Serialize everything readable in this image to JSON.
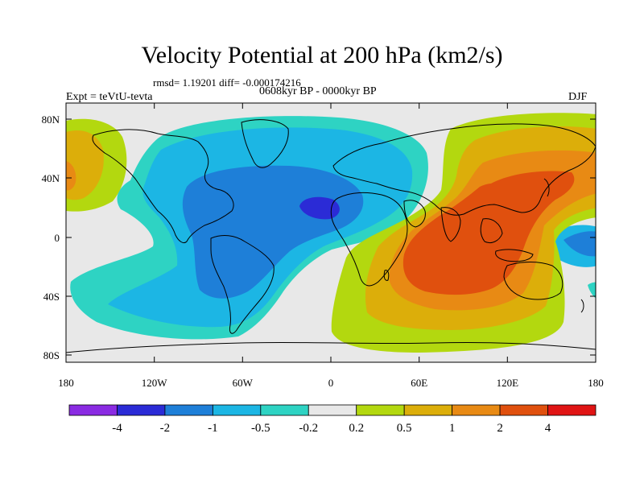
{
  "title": "Velocity Potential at 200 hPa (km2/s)",
  "stats": "rmsd= 1.19201 diff= -0.000174216",
  "period": "0608kyr BP - 0000kyr BP",
  "experiment": "Expt = teVtU-tevta",
  "season": "DJF",
  "lon_labels": [
    "180",
    "120W",
    "60W",
    "0",
    "60E",
    "120E",
    "180"
  ],
  "lat_labels": [
    "80N",
    "40N",
    "0",
    "40S",
    "80S"
  ],
  "colorbar": {
    "labels": [
      "-4",
      "-2",
      "-1",
      "-0.5",
      "-0.2",
      "0.2",
      "0.5",
      "1",
      "2",
      "4"
    ],
    "colors": [
      "#8a2be2",
      "#2b2bd6",
      "#1e7fd8",
      "#1cb6e4",
      "#2ed3c3",
      "#e8e8e8",
      "#b3d80f",
      "#dcae0a",
      "#e88a14",
      "#e0500e",
      "#e01414"
    ]
  },
  "fill_colors": {
    "ocean_bg": "#e8e8e8",
    "neg_0_2": "#2ed3c3",
    "neg_0_5": "#1cb6e4",
    "neg_1": "#1e7fd8",
    "neg_2": "#2b2bd6",
    "pos_0_2": "#b3d80f",
    "pos_0_5": "#dcae0a",
    "pos_1": "#e88a14",
    "pos_2": "#e0500e"
  }
}
